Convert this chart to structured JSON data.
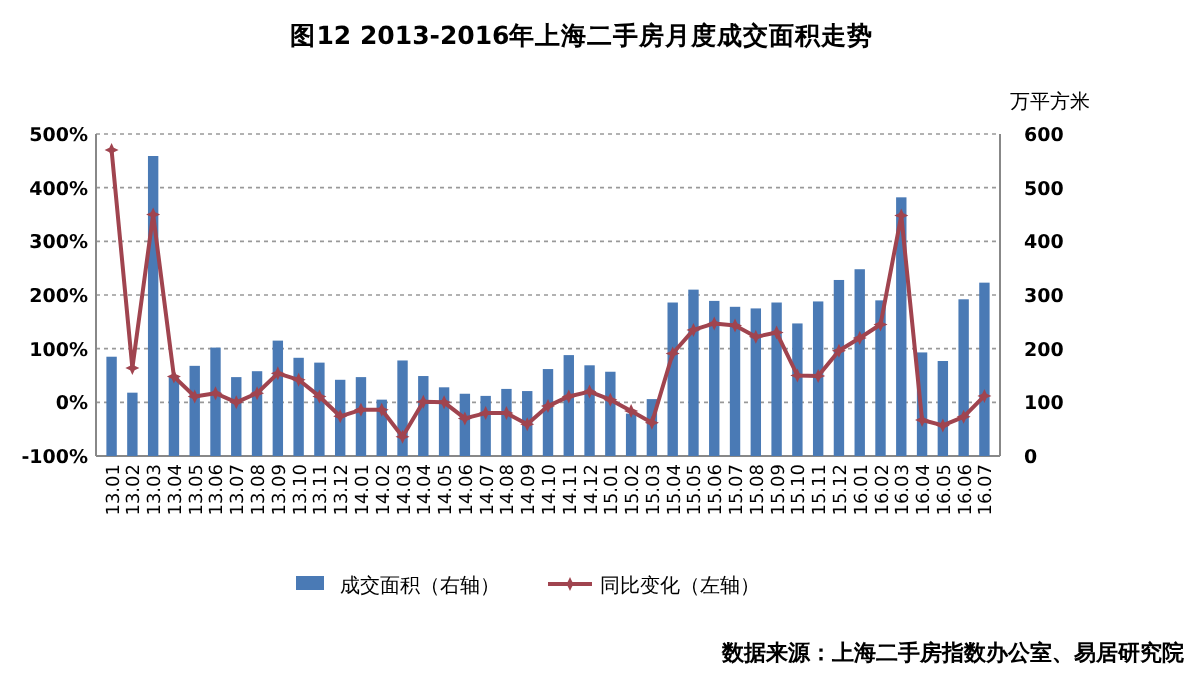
{
  "chart_data": {
    "type": "bar",
    "title": "图12  2013-2016年上海二手房月度成交面积走势",
    "y2label": "万平方米",
    "categories": [
      "13.01",
      "13.02",
      "13.03",
      "13.04",
      "13.05",
      "13.06",
      "13.07",
      "13.08",
      "13.09",
      "13.10",
      "13.11",
      "13.12",
      "14.01",
      "14.02",
      "14.03",
      "14.04",
      "14.05",
      "14.06",
      "14.07",
      "14.08",
      "14.09",
      "14.10",
      "14.11",
      "14.12",
      "15.01",
      "15.02",
      "15.03",
      "15.04",
      "15.05",
      "15.06",
      "15.07",
      "15.08",
      "15.09",
      "15.10",
      "15.11",
      "15.12",
      "16.01",
      "16.02",
      "16.03",
      "16.04",
      "16.05",
      "16.06",
      "16.07"
    ],
    "series": [
      {
        "name": "成交面积（右轴）",
        "axis": "y2",
        "color": "#4a7ab5",
        "values": [
          185,
          118,
          559,
          147,
          168,
          202,
          147,
          158,
          215,
          183,
          174,
          142,
          147,
          105,
          178,
          149,
          128,
          116,
          112,
          125,
          121,
          162,
          188,
          169,
          157,
          79,
          106,
          286,
          310,
          289,
          278,
          275,
          286,
          247,
          288,
          328,
          348,
          290,
          482,
          193,
          177,
          292,
          323
        ]
      },
      {
        "name": "同比变化（左轴）",
        "type": "line",
        "color": "#a0444f",
        "values": [
          470,
          64,
          350,
          48,
          11,
          17,
          0,
          17,
          54,
          42,
          11,
          -26,
          -14,
          -14,
          -64,
          1,
          0,
          -30,
          -20,
          -20,
          -41,
          -7,
          11,
          20,
          5,
          -16,
          -38,
          91,
          135,
          147,
          143,
          122,
          130,
          50,
          49,
          96,
          120,
          145,
          348,
          -33,
          -43,
          -27,
          12
        ]
      }
    ],
    "ylim": [
      -100,
      500
    ],
    "yticks": [
      {
        "value": -100,
        "label": "-100%"
      },
      {
        "value": 0,
        "label": "0%"
      },
      {
        "value": 100,
        "label": "100%"
      },
      {
        "value": 200,
        "label": "200%"
      },
      {
        "value": 300,
        "label": "300%"
      },
      {
        "value": 400,
        "label": "400%"
      },
      {
        "value": 500,
        "label": "500%"
      }
    ],
    "y2lim": [
      0,
      600
    ],
    "y2ticks": [
      0,
      100,
      200,
      300,
      400,
      500,
      600
    ],
    "grid": "y",
    "legend": "bottom",
    "marker": "star",
    "annotations": [
      "数据来源：上海二手房指数办公室、易居研究院"
    ]
  }
}
